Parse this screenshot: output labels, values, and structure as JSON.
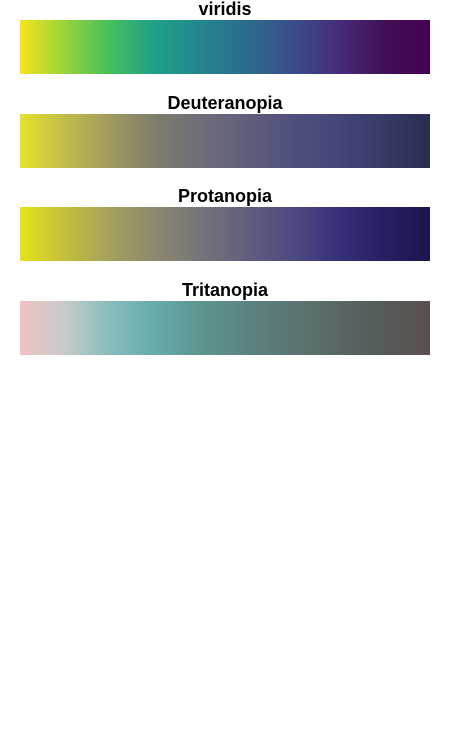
{
  "chart_data": [
    {
      "type": "heatmap",
      "title": "viridis",
      "colors": [
        "#f5e41c",
        "#95d43b",
        "#43be5e",
        "#1e9e89",
        "#24858e",
        "#2b6b8c",
        "#3a4c8a",
        "#462c7a",
        "#420f54",
        "#440154"
      ]
    },
    {
      "type": "heatmap",
      "title": "Deuteranopia",
      "colors": [
        "#e6e22c",
        "#c0bc4b",
        "#9e9a5f",
        "#7f7c6d",
        "#6e6d79",
        "#5e5e7c",
        "#4f4f7e",
        "#45457a",
        "#383a66",
        "#2a2d4e"
      ]
    },
    {
      "type": "heatmap",
      "title": "Protanopia",
      "colors": [
        "#e5e21c",
        "#c2be3d",
        "#a4a05d",
        "#8a876f",
        "#75737a",
        "#605e7e",
        "#4d4a80",
        "#36307a",
        "#261f64",
        "#1a154c"
      ]
    },
    {
      "type": "heatmap",
      "title": "Tritanopia",
      "colors": [
        "#f1c2c2",
        "#c6cacb",
        "#86bcbc",
        "#65aaa8",
        "#5c948f",
        "#5b8480",
        "#5a7572",
        "#576765",
        "#555a59",
        "#5e4f4f"
      ]
    }
  ]
}
